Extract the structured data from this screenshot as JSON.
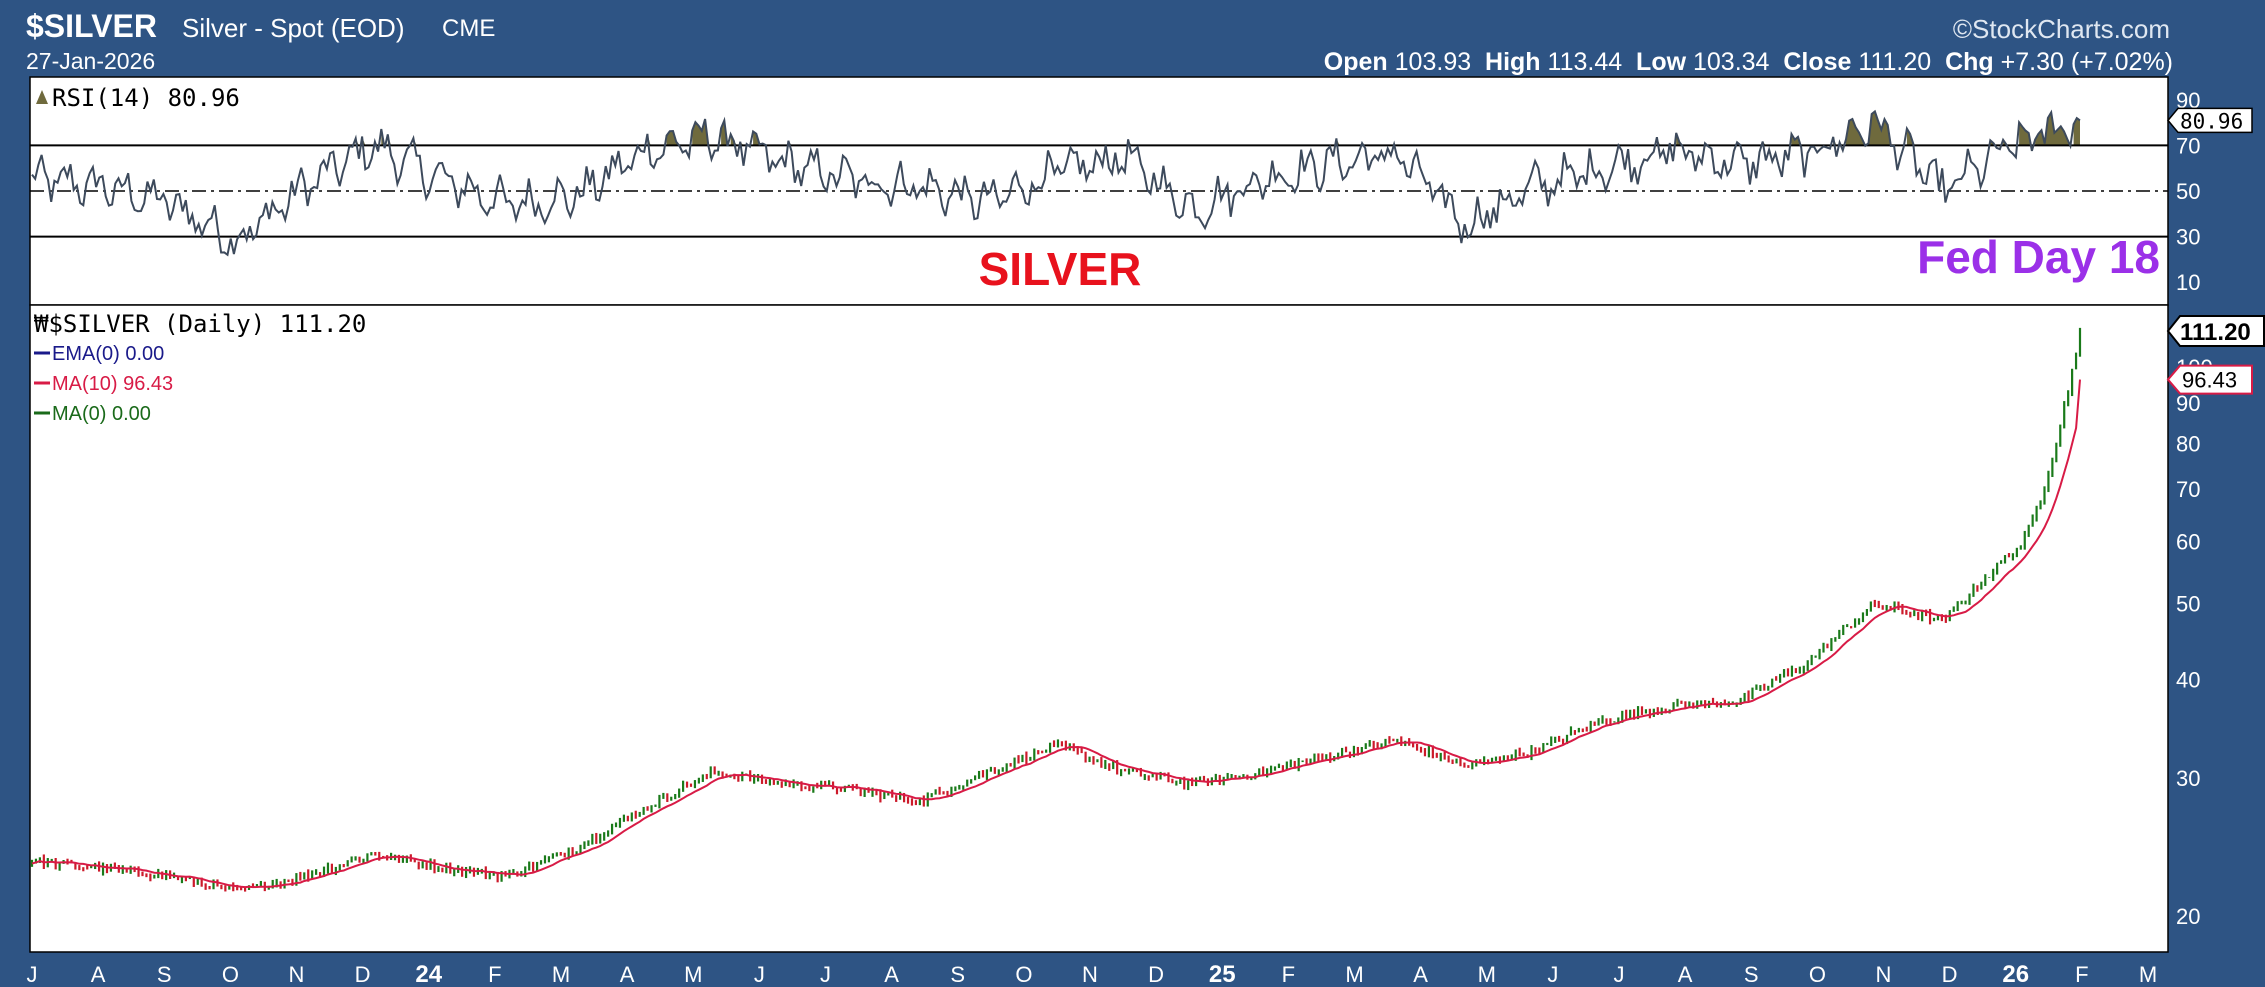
{
  "header": {
    "symbol": "$SILVER",
    "description": "Silver - Spot (EOD)",
    "exchange": "CME",
    "date": "27-Jan-2026",
    "brand": "©StockCharts.com",
    "open_label": "Open",
    "open": "103.93",
    "high_label": "High",
    "high": "113.44",
    "low_label": "Low",
    "low": "103.34",
    "close_label": "Close",
    "close": "111.20",
    "chg_label": "Chg",
    "chg": "+7.30 (+7.02%)"
  },
  "annotations": {
    "silver_label": "SILVER",
    "fed_label": "Fed Day 18"
  },
  "colors": {
    "background": "#2e5484",
    "panel": "#ffffff",
    "up_bar": "#1a7a1a",
    "down_bar": "#cc1a2a",
    "ma10": "#d81b46",
    "ema": "#1a1a8a",
    "ma0": "#1a6a1a",
    "rsi_line": "#3d4a5c",
    "rsi_fill": "#6f6a3d",
    "silver_label": "#e8121d",
    "fed_label": "#9b30e8"
  },
  "chart_data": [
    {
      "type": "line",
      "title": "RSI(14) 80.96",
      "legend": [
        "RSI(14) 80.96"
      ],
      "ylim": [
        0,
        100
      ],
      "yticks": [
        10,
        30,
        50,
        70,
        90
      ],
      "reference_lines": [
        30,
        50,
        70
      ],
      "last_value": 80.96,
      "x": [
        "2023-07",
        "2023-08",
        "2023-09",
        "2023-10",
        "2023-11",
        "2023-12",
        "2024-01",
        "2024-02",
        "2024-03",
        "2024-04",
        "2024-05",
        "2024-06",
        "2024-07",
        "2024-08",
        "2024-09",
        "2024-10",
        "2024-11",
        "2024-12",
        "2025-01",
        "2025-02",
        "2025-03",
        "2025-04",
        "2025-05",
        "2025-06",
        "2025-07",
        "2025-08",
        "2025-09",
        "2025-10",
        "2025-11",
        "2025-12",
        "2026-01"
      ],
      "values": [
        55,
        52,
        45,
        28,
        52,
        70,
        55,
        44,
        48,
        68,
        74,
        62,
        55,
        52,
        45,
        58,
        65,
        42,
        55,
        62,
        66,
        35,
        52,
        60,
        68,
        62,
        66,
        80,
        50,
        70,
        81
      ]
    },
    {
      "type": "line",
      "title": "$SILVER (Daily) 111.20",
      "legend": [
        "$SILVER (Daily) 111.20",
        "EMA(0) 0.00",
        "MA(10) 96.43",
        "MA(0) 0.00"
      ],
      "x_tick_labels": [
        "J",
        "A",
        "S",
        "O",
        "N",
        "D",
        "24",
        "F",
        "M",
        "A",
        "M",
        "J",
        "J",
        "A",
        "S",
        "O",
        "N",
        "D",
        "25",
        "F",
        "M",
        "A",
        "M",
        "J",
        "J",
        "A",
        "S",
        "O",
        "N",
        "D",
        "26",
        "F",
        "M"
      ],
      "ylim": [
        18,
        120
      ],
      "yscale": "log",
      "yticks": [
        20,
        30,
        40,
        50,
        60,
        70,
        80,
        90,
        100
      ],
      "last_close": 111.2,
      "ma10_last": 96.43,
      "series": [
        {
          "name": "$SILVER (Daily)",
          "x": [
            "2023-07",
            "2023-08",
            "2023-09",
            "2023-10",
            "2023-11",
            "2023-12",
            "2024-01",
            "2024-02",
            "2024-03",
            "2024-04",
            "2024-05",
            "2024-06",
            "2024-07",
            "2024-08",
            "2024-09",
            "2024-10",
            "2024-11",
            "2024-12",
            "2025-01",
            "2025-02",
            "2025-03",
            "2025-04",
            "2025-05",
            "2025-06",
            "2025-07",
            "2025-08",
            "2025-09",
            "2025-10",
            "2025-11",
            "2025-12",
            "2026-01"
          ],
          "values": [
            23.5,
            23.0,
            22.5,
            21.5,
            22.5,
            24.0,
            23.0,
            22.5,
            24.5,
            27.5,
            30.5,
            29.5,
            29.0,
            28.0,
            30.5,
            33.0,
            30.5,
            29.5,
            30.5,
            32.0,
            33.5,
            31.0,
            32.5,
            35.5,
            37.0,
            37.5,
            42.0,
            50.0,
            47.5,
            58.0,
            111.2
          ]
        },
        {
          "name": "MA(10)",
          "x": [
            "2023-07",
            "2023-08",
            "2023-09",
            "2023-10",
            "2023-11",
            "2023-12",
            "2024-01",
            "2024-02",
            "2024-03",
            "2024-04",
            "2024-05",
            "2024-06",
            "2024-07",
            "2024-08",
            "2024-09",
            "2024-10",
            "2024-11",
            "2024-12",
            "2025-01",
            "2025-02",
            "2025-03",
            "2025-04",
            "2025-05",
            "2025-06",
            "2025-07",
            "2025-08",
            "2025-09",
            "2025-10",
            "2025-11",
            "2025-12",
            "2026-01"
          ],
          "values": [
            23.3,
            23.0,
            22.6,
            21.8,
            22.4,
            23.7,
            23.0,
            22.6,
            24.2,
            27.0,
            30.0,
            29.6,
            29.1,
            28.2,
            30.2,
            32.5,
            30.8,
            29.7,
            30.4,
            31.8,
            33.2,
            31.4,
            32.4,
            35.2,
            36.8,
            37.3,
            41.5,
            48.5,
            47.0,
            56.0,
            96.43
          ]
        },
        {
          "name": "EMA(0)",
          "value": 0.0
        },
        {
          "name": "MA(0)",
          "value": 0.0
        }
      ]
    }
  ]
}
